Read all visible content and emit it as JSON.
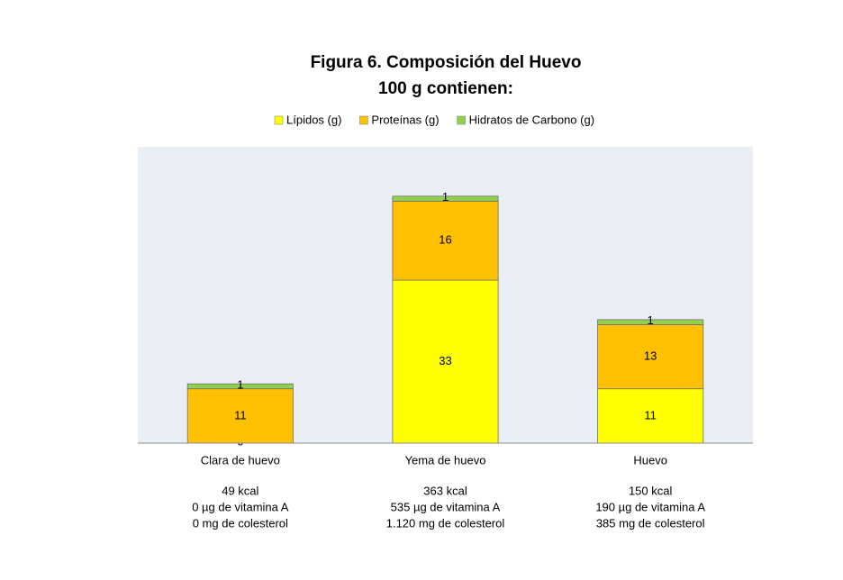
{
  "chart_data": {
    "type": "stacked-bar",
    "title": "Figura 6. Composición del Huevo",
    "subtitle": "100 g contienen:",
    "categories": [
      "Clara de huevo",
      "Yema de huevo",
      "Huevo"
    ],
    "series": [
      {
        "name": "Lípidos (g)",
        "color": "#ffff00",
        "values": [
          0,
          33,
          11
        ]
      },
      {
        "name": "Proteínas (g)",
        "color": "#ffc000",
        "values": [
          11,
          16,
          13
        ]
      },
      {
        "name": "Hidratos de Carbono (g)",
        "color": "#92d050",
        "values": [
          1,
          1,
          1
        ]
      }
    ],
    "notes": [
      [
        "49 kcal",
        "0 µg de vitamina A",
        "0 mg de colesterol"
      ],
      [
        "363 kcal",
        "535 µg de vitamina A",
        "1.120 mg de colesterol"
      ],
      [
        "150 kcal",
        "190 µg de vitamina A",
        "385 mg de colesterol"
      ]
    ],
    "ylim": [
      0,
      60
    ],
    "legend": "top"
  }
}
